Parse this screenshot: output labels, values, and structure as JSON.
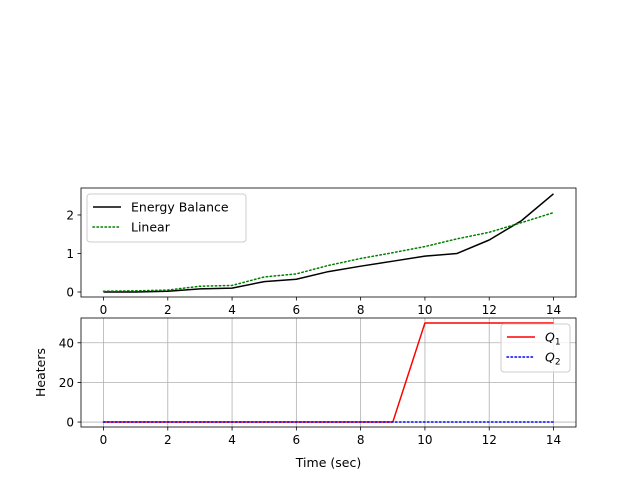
{
  "chart_data": [
    {
      "type": "line",
      "title": "",
      "xlabel": "",
      "ylabel": "",
      "xlim": [
        -0.7,
        14.7
      ],
      "ylim": [
        -0.13,
        2.7
      ],
      "xticks": [
        0,
        2,
        4,
        6,
        8,
        10,
        12,
        14
      ],
      "yticks": [
        0,
        1,
        2
      ],
      "grid": false,
      "legend_location": "upper left",
      "series": [
        {
          "name": "Energy Balance",
          "color": "#000000",
          "style": "solid",
          "x": [
            0,
            1,
            2,
            3,
            4,
            5,
            6,
            7,
            8,
            9,
            10,
            11,
            12,
            13,
            14
          ],
          "y": [
            0.0,
            0.0,
            0.02,
            0.08,
            0.1,
            0.27,
            0.33,
            0.53,
            0.67,
            0.8,
            0.93,
            1.0,
            1.35,
            1.85,
            2.55
          ]
        },
        {
          "name": "Linear",
          "color": "#008000",
          "style": "dotted",
          "x": [
            0,
            1,
            2,
            3,
            4,
            5,
            6,
            7,
            8,
            9,
            10,
            11,
            12,
            13,
            14
          ],
          "y": [
            0.02,
            0.03,
            0.05,
            0.15,
            0.17,
            0.39,
            0.47,
            0.69,
            0.87,
            1.02,
            1.18,
            1.38,
            1.55,
            1.8,
            2.06
          ]
        }
      ]
    },
    {
      "type": "line",
      "title": "",
      "xlabel": "Time (sec)",
      "ylabel": "Heaters",
      "xlim": [
        -0.7,
        14.7
      ],
      "ylim": [
        -2.5,
        52.5
      ],
      "xticks": [
        0,
        2,
        4,
        6,
        8,
        10,
        12,
        14
      ],
      "yticks": [
        0,
        20,
        40
      ],
      "grid": true,
      "legend_location": "upper right",
      "series": [
        {
          "name": "Q1",
          "legend_base": "Q",
          "legend_sub": "1",
          "color": "#ff0000",
          "style": "solid",
          "x": [
            0,
            1,
            2,
            3,
            4,
            5,
            6,
            7,
            8,
            9,
            10,
            11,
            12,
            13,
            14
          ],
          "y": [
            0,
            0,
            0,
            0,
            0,
            0,
            0,
            0,
            0,
            0,
            50,
            50,
            50,
            50,
            50
          ]
        },
        {
          "name": "Q2",
          "legend_base": "Q",
          "legend_sub": "2",
          "color": "#0000ff",
          "style": "dotted",
          "x": [
            0,
            1,
            2,
            3,
            4,
            5,
            6,
            7,
            8,
            9,
            10,
            11,
            12,
            13,
            14
          ],
          "y": [
            0,
            0,
            0,
            0,
            0,
            0,
            0,
            0,
            0,
            0,
            0,
            0,
            0,
            0,
            0
          ]
        }
      ]
    }
  ]
}
